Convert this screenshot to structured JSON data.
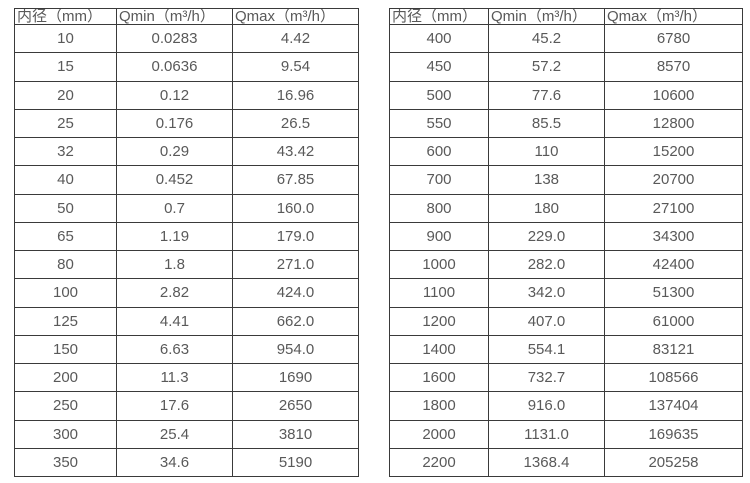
{
  "colors": {
    "background": "#ffffff",
    "text": "#595959",
    "border": "#3a3a3a"
  },
  "tables": [
    {
      "name": "small-diameter-flow-rates",
      "headers": [
        "内径（mm）",
        "Qmin（m³/h）",
        "Qmax（m³/h）"
      ],
      "rows": [
        [
          "10",
          "0.0283",
          "4.42"
        ],
        [
          "15",
          "0.0636",
          "9.54"
        ],
        [
          "20",
          "0.12",
          "16.96"
        ],
        [
          "25",
          "0.176",
          "26.5"
        ],
        [
          "32",
          "0.29",
          "43.42"
        ],
        [
          "40",
          "0.452",
          "67.85"
        ],
        [
          "50",
          "0.7",
          "160.0"
        ],
        [
          "65",
          "1.19",
          "179.0"
        ],
        [
          "80",
          "1.8",
          "271.0"
        ],
        [
          "100",
          "2.82",
          "424.0"
        ],
        [
          "125",
          "4.41",
          "662.0"
        ],
        [
          "150",
          "6.63",
          "954.0"
        ],
        [
          "200",
          "11.3",
          "1690"
        ],
        [
          "250",
          "17.6",
          "2650"
        ],
        [
          "300",
          "25.4",
          "3810"
        ],
        [
          "350",
          "34.6",
          "5190"
        ]
      ]
    },
    {
      "name": "large-diameter-flow-rates",
      "headers": [
        "内径（mm）",
        "Qmin（m³/h）",
        "Qmax（m³/h）"
      ],
      "rows": [
        [
          "400",
          "45.2",
          "6780"
        ],
        [
          "450",
          "57.2",
          "8570"
        ],
        [
          "500",
          "77.6",
          "10600"
        ],
        [
          "550",
          "85.5",
          "12800"
        ],
        [
          "600",
          "110",
          "15200"
        ],
        [
          "700",
          "138",
          "20700"
        ],
        [
          "800",
          "180",
          "27100"
        ],
        [
          "900",
          "229.0",
          "34300"
        ],
        [
          "1000",
          "282.0",
          "42400"
        ],
        [
          "1100",
          "342.0",
          "51300"
        ],
        [
          "1200",
          "407.0",
          "61000"
        ],
        [
          "1400",
          "554.1",
          "83121"
        ],
        [
          "1600",
          "732.7",
          "108566"
        ],
        [
          "1800",
          "916.0",
          "137404"
        ],
        [
          "2000",
          "1131.0",
          "169635"
        ],
        [
          "2200",
          "1368.4",
          "205258"
        ]
      ]
    }
  ]
}
